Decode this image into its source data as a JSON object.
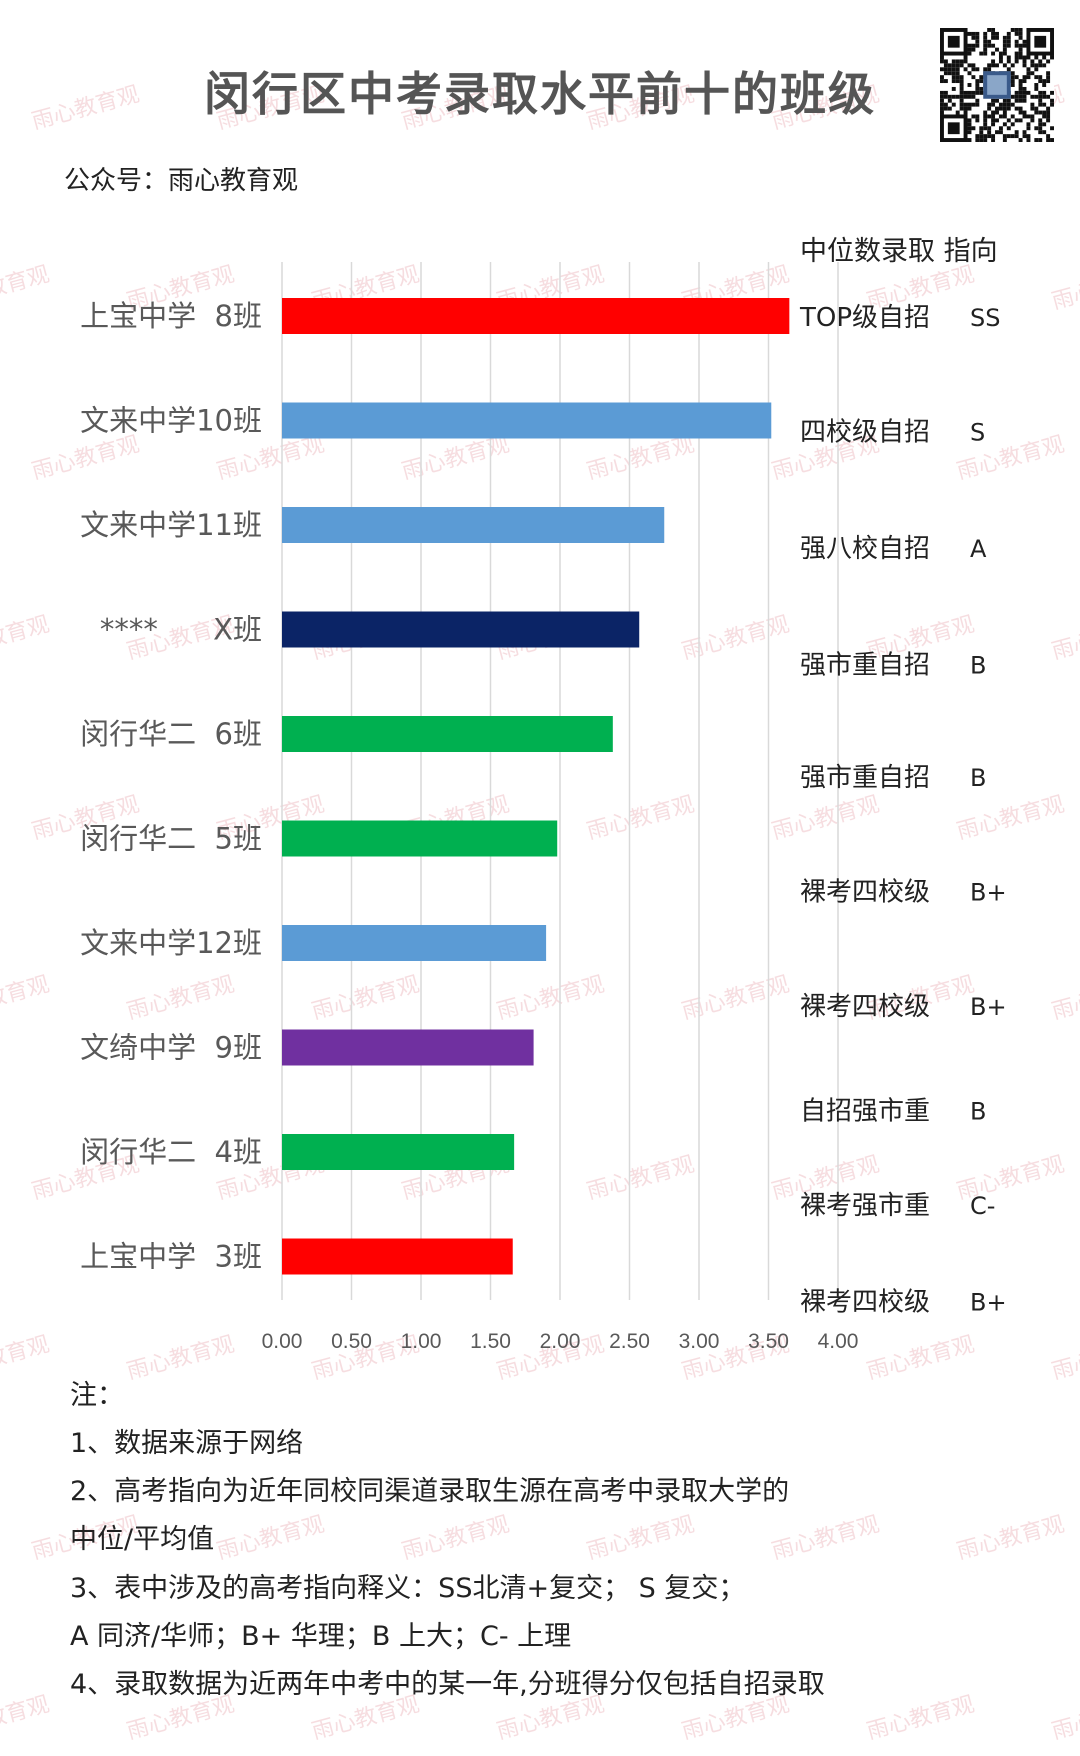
{
  "title": "闵行区中考录取水平前十的班级",
  "account": "公众号：雨心教育观",
  "watermark": "雨心教育观",
  "qr_icon": "qr-code-icon",
  "chart_data": {
    "type": "bar",
    "orientation": "horizontal",
    "title": "闵行区中考录取水平前十的班级",
    "categories": [
      "上宝中学  8班",
      "文来中学10班",
      "文来中学11班",
      "****      X班",
      "闵行华二  6班",
      "闵行华二  5班",
      "文来中学12班",
      "文绮中学  9班",
      "闵行华二  4班",
      "上宝中学  3班"
    ],
    "values": [
      3.65,
      3.52,
      2.75,
      2.57,
      2.38,
      1.98,
      1.9,
      1.81,
      1.67,
      1.66
    ],
    "colors": [
      "#ff0000",
      "#5b9bd5",
      "#5b9bd5",
      "#0b2466",
      "#00b050",
      "#00b050",
      "#5b9bd5",
      "#7030a0",
      "#00b050",
      "#ff0000"
    ],
    "xlim": [
      0,
      4
    ],
    "xticks": [
      "0.00",
      "0.50",
      "1.00",
      "1.50",
      "2.00",
      "2.50",
      "3.00",
      "3.50",
      "4.00"
    ],
    "grid": "vertical",
    "right_header": "中位数录取 指向",
    "right_labels": [
      {
        "level": "TOP级自招",
        "target": "SS"
      },
      {
        "level": "四校级自招",
        "target": "S"
      },
      {
        "level": "强八校自招",
        "target": "A"
      },
      {
        "level": "强市重自招",
        "target": "B"
      },
      {
        "level": "强市重自招",
        "target": "B"
      },
      {
        "level": "裸考四校级",
        "target": "B+"
      },
      {
        "level": "裸考四校级",
        "target": "B+"
      },
      {
        "level": "自招强市重",
        "target": "B"
      },
      {
        "level": "裸考强市重",
        "target": "C-"
      },
      {
        "level": "裸考四校级",
        "target": "B+"
      }
    ]
  },
  "notes": [
    "注：",
    "1、数据来源于网络",
    "2、高考指向为近年同校同渠道录取生源在高考中录取大学的",
    "中位/平均值",
    "3、表中涉及的高考指向释义：SS北清+复交； S 复交；",
    "A 同济/华师；B+ 华理；B 上大；C- 上理",
    "4、录取数据为近两年中考中的某一年,分班得分仅包括自招录取"
  ]
}
